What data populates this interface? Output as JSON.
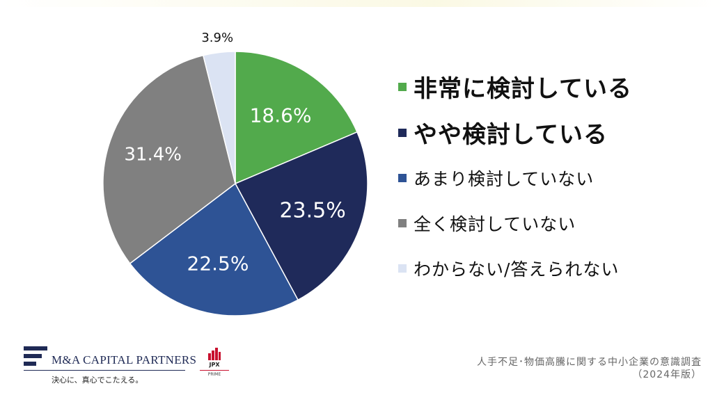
{
  "chart_data": {
    "type": "pie",
    "start_angle_deg": 0,
    "direction": "clockwise",
    "slices": [
      {
        "label": "非常に検討している",
        "value": 18.6,
        "value_label": "18.6%",
        "color": "#52aa4c"
      },
      {
        "label": "やや検討している",
        "value": 23.5,
        "value_label": "23.5%",
        "color": "#1f2a5a"
      },
      {
        "label": "あまり検討していない",
        "value": 22.5,
        "value_label": "22.5%",
        "color": "#2e5395"
      },
      {
        "label": "全く検討していない",
        "value": 31.4,
        "value_label": "31.4%",
        "color": "#808080"
      },
      {
        "label": "わからない/答えられない",
        "value": 3.9,
        "value_label": "3.9%",
        "color": "#dbe3f3"
      }
    ],
    "legend_position": "right"
  },
  "logo": {
    "company": "M&A CAPITAL PARTNERS",
    "tagline": "決心に、真心でこたえる。"
  },
  "jpx_badge": {
    "name": "JPX",
    "sub": "PRIME"
  },
  "footer": {
    "title": "人手不足･物価高騰に関する中小企業の意識調査",
    "subtitle": "（2024年版）"
  }
}
